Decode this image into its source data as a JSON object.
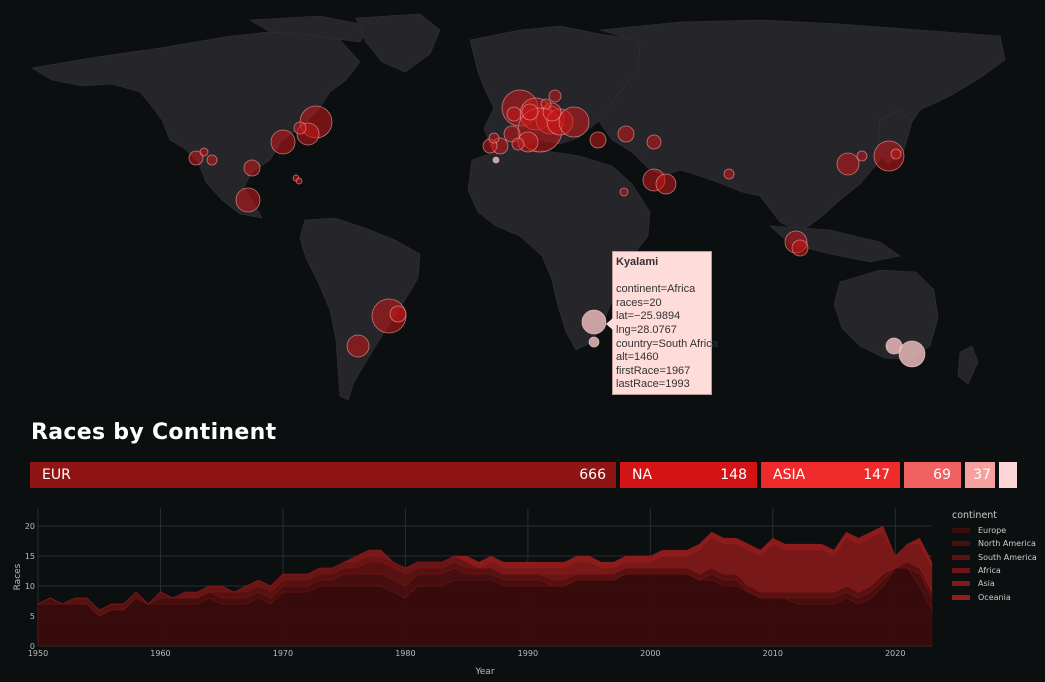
{
  "colors": {
    "background": "#0b0f10",
    "land": "#26252a",
    "bubble": "#c81818",
    "bubble_light": "#e9b9b9",
    "tooltip_bg": "#fddcda"
  },
  "map": {
    "tooltip": {
      "title": "Kyalami",
      "rows": [
        "continent=Africa",
        "races=20",
        "lat=−25.9894",
        "lng=28.0767",
        "country=South Africa",
        "alt=1460",
        "firstRace=1967",
        "lastRace=1993"
      ]
    }
  },
  "section_title": "Races by Continent",
  "continent_bars": [
    {
      "label": "EUR",
      "value": "666",
      "color": "#8f1414"
    },
    {
      "label": "NA",
      "value": "148",
      "color": "#d41414"
    },
    {
      "label": "ASIA",
      "value": "147",
      "color": "#ef2a2a"
    },
    {
      "label": "",
      "value": "69",
      "color": "#f26161"
    },
    {
      "label": "",
      "value": "37",
      "color": "#f7a0a0"
    },
    {
      "label": "",
      "value": "",
      "color": "#fdd7d7"
    }
  ],
  "chart_data": {
    "type": "area",
    "xlabel": "Year",
    "ylabel": "Races",
    "xlim": [
      1950,
      2023
    ],
    "ylim": [
      0,
      23
    ],
    "x_ticks": [
      "1950",
      "1960",
      "1970",
      "1980",
      "1990",
      "2000",
      "2010",
      "2020"
    ],
    "y_ticks": [
      "0",
      "5",
      "10",
      "15",
      "20"
    ],
    "legend_title": "continent",
    "x": [
      1950,
      1951,
      1952,
      1953,
      1954,
      1955,
      1956,
      1957,
      1958,
      1959,
      1960,
      1961,
      1962,
      1963,
      1964,
      1965,
      1966,
      1967,
      1968,
      1969,
      1970,
      1971,
      1972,
      1973,
      1974,
      1975,
      1976,
      1977,
      1978,
      1979,
      1980,
      1981,
      1982,
      1983,
      1984,
      1985,
      1986,
      1987,
      1988,
      1989,
      1990,
      1991,
      1992,
      1993,
      1994,
      1995,
      1996,
      1997,
      1998,
      1999,
      2000,
      2001,
      2002,
      2003,
      2004,
      2005,
      2006,
      2007,
      2008,
      2009,
      2010,
      2011,
      2012,
      2013,
      2014,
      2015,
      2016,
      2017,
      2018,
      2019,
      2020,
      2021,
      2022,
      2023
    ],
    "series": [
      {
        "name": "Europe",
        "color": "#3a0c0c",
        "values": [
          7,
          7,
          7,
          7,
          7,
          5,
          6,
          6,
          8,
          7,
          7,
          7,
          7,
          7,
          8,
          7,
          7,
          7,
          8,
          7,
          9,
          9,
          9,
          10,
          10,
          10,
          10,
          10,
          10,
          9,
          8,
          10,
          10,
          10,
          11,
          11,
          11,
          11,
          10,
          10,
          10,
          10,
          10,
          10,
          11,
          11,
          11,
          11,
          12,
          12,
          12,
          12,
          12,
          12,
          11,
          11,
          10,
          10,
          9,
          8,
          8,
          8,
          7,
          7,
          7,
          7,
          8,
          7,
          8,
          10,
          13,
          13,
          10,
          6
        ]
      },
      {
        "name": "North America",
        "color": "#4a0f0f",
        "values": [
          0,
          1,
          0,
          0,
          0,
          0,
          0,
          0,
          0,
          0,
          1,
          1,
          1,
          1,
          1,
          1,
          1,
          1,
          1,
          1,
          1,
          1,
          1,
          1,
          1,
          2,
          2,
          2,
          2,
          2,
          2,
          2,
          2,
          2,
          2,
          1,
          1,
          1,
          1,
          1,
          1,
          1,
          0,
          0,
          0,
          0,
          0,
          0,
          0,
          0,
          0,
          0,
          0,
          0,
          0,
          1,
          1,
          1,
          0,
          0,
          0,
          0,
          1,
          1,
          1,
          1,
          1,
          1,
          1,
          1,
          0,
          0,
          2,
          2
        ]
      },
      {
        "name": "South America",
        "color": "#5c1212",
        "values": [
          0,
          0,
          0,
          1,
          1,
          1,
          1,
          1,
          1,
          0,
          1,
          0,
          0,
          0,
          0,
          1,
          1,
          1,
          1,
          1,
          1,
          1,
          1,
          1,
          1,
          1,
          1,
          2,
          2,
          2,
          2,
          1,
          1,
          1,
          1,
          1,
          1,
          1,
          1,
          1,
          1,
          1,
          1,
          1,
          1,
          1,
          1,
          1,
          1,
          1,
          1,
          1,
          1,
          1,
          1,
          1,
          1,
          1,
          1,
          1,
          1,
          1,
          1,
          1,
          1,
          1,
          1,
          1,
          1,
          1,
          0,
          1,
          1,
          1
        ]
      },
      {
        "name": "Africa",
        "color": "#6e1616",
        "values": [
          0,
          0,
          0,
          0,
          0,
          0,
          0,
          0,
          0,
          0,
          0,
          0,
          1,
          1,
          1,
          1,
          0,
          1,
          1,
          1,
          1,
          1,
          1,
          1,
          1,
          1,
          1,
          1,
          1,
          1,
          1,
          1,
          1,
          1,
          1,
          1,
          0,
          0,
          0,
          0,
          0,
          0,
          1,
          1,
          0,
          0,
          0,
          0,
          0,
          0,
          0,
          0,
          0,
          0,
          0,
          0,
          0,
          0,
          0,
          0,
          0,
          0,
          0,
          0,
          0,
          0,
          0,
          0,
          0,
          0,
          0,
          0,
          0,
          0
        ]
      },
      {
        "name": "Asia",
        "color": "#801919",
        "values": [
          0,
          0,
          0,
          0,
          0,
          0,
          0,
          0,
          0,
          0,
          0,
          0,
          0,
          0,
          0,
          0,
          0,
          0,
          0,
          0,
          0,
          0,
          0,
          0,
          0,
          0,
          1,
          1,
          1,
          0,
          0,
          0,
          0,
          0,
          0,
          0,
          0,
          1,
          1,
          1,
          1,
          1,
          1,
          1,
          2,
          2,
          1,
          1,
          1,
          1,
          1,
          2,
          2,
          2,
          4,
          5,
          5,
          5,
          6,
          6,
          8,
          7,
          7,
          7,
          7,
          6,
          8,
          8,
          8,
          7,
          2,
          3,
          4,
          4
        ]
      },
      {
        "name": "Oceania",
        "color": "#931c1c",
        "values": [
          0,
          0,
          0,
          0,
          0,
          0,
          0,
          0,
          0,
          0,
          0,
          0,
          0,
          0,
          0,
          0,
          0,
          0,
          0,
          0,
          0,
          0,
          0,
          0,
          0,
          0,
          0,
          0,
          0,
          0,
          0,
          0,
          0,
          0,
          0,
          1,
          1,
          1,
          1,
          1,
          1,
          1,
          1,
          1,
          1,
          1,
          1,
          1,
          1,
          1,
          1,
          1,
          1,
          1,
          1,
          1,
          1,
          1,
          1,
          1,
          1,
          1,
          1,
          1,
          1,
          1,
          1,
          1,
          1,
          1,
          0,
          0,
          1,
          1
        ]
      }
    ]
  }
}
